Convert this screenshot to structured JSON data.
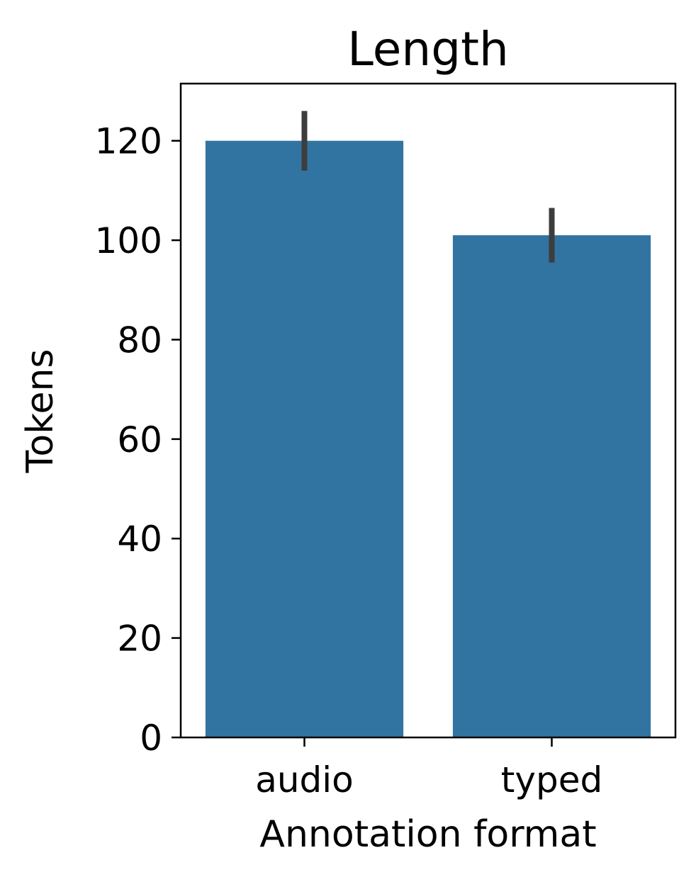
{
  "chart_data": {
    "type": "bar",
    "title": "Length",
    "xlabel": "Annotation format",
    "ylabel": "Tokens",
    "categories": [
      "audio",
      "typed"
    ],
    "values": [
      120,
      101
    ],
    "error_bars": [
      {
        "low": 114,
        "high": 126
      },
      {
        "low": 95.5,
        "high": 106.5
      }
    ],
    "ylim": [
      0,
      131.5
    ],
    "yticks": [
      0,
      20,
      40,
      60,
      80,
      100,
      120
    ],
    "ytick_labels": [
      "0",
      "20",
      "40",
      "60",
      "80",
      "100",
      "120"
    ],
    "grid": false,
    "legend": "none"
  },
  "colors": {
    "bar": "#3274a1",
    "error_bar": "#3d3d3d",
    "axes": "#000000"
  }
}
